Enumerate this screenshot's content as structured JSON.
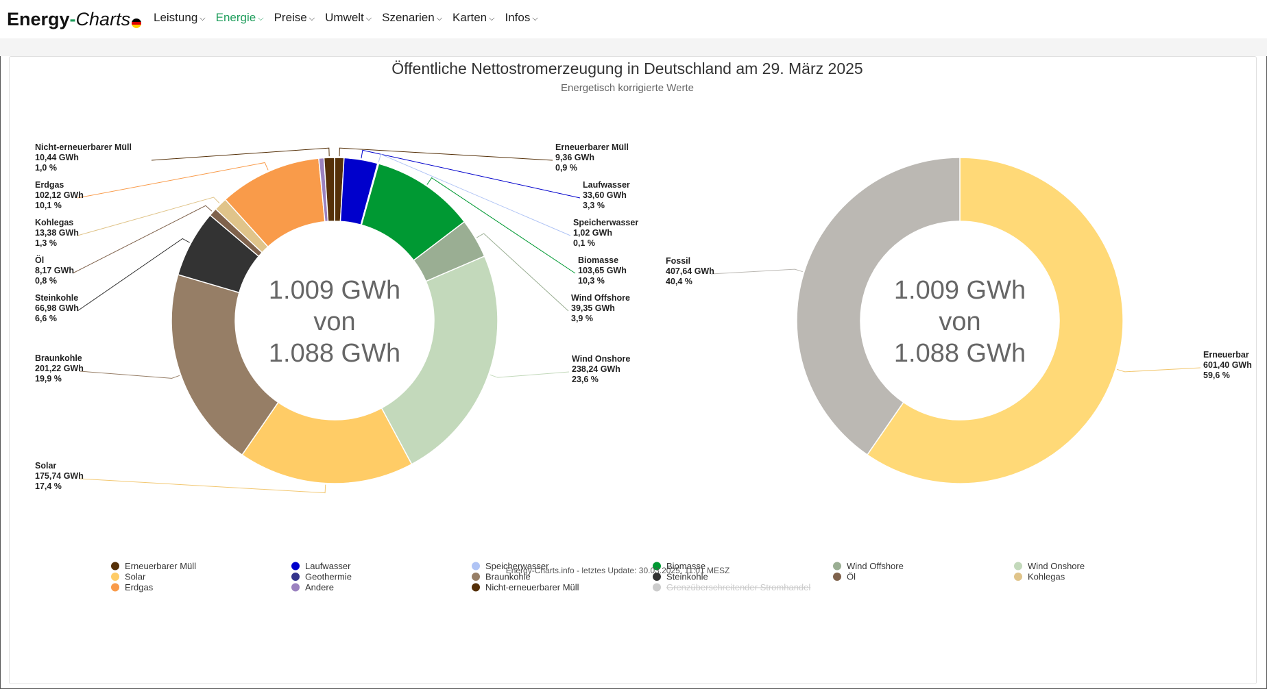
{
  "brand": {
    "part1": "Energy",
    "dash": "-",
    "part2": "Charts"
  },
  "nav": [
    {
      "label": "Leistung",
      "active": false
    },
    {
      "label": "Energie",
      "active": true
    },
    {
      "label": "Preise",
      "active": false
    },
    {
      "label": "Umwelt",
      "active": false
    },
    {
      "label": "Szenarien",
      "active": false
    },
    {
      "label": "Karten",
      "active": false
    },
    {
      "label": "Infos",
      "active": false
    }
  ],
  "chart": {
    "title": "Öffentliche Nettostromerzeugung in Deutschland am 29. März 2025",
    "subtitle": "Energetisch korrigierte Werte",
    "center_line1": "1.009 GWh",
    "center_line2": "von",
    "center_line3": "1.088 GWh",
    "credits": "Energy-Charts.info - letztes Update: 30.03.2025, 11:01 MESZ"
  },
  "chart_data": [
    {
      "type": "pie",
      "donut": true,
      "title": "Öffentliche Nettostromerzeugung in Deutschland am 29. März 2025",
      "subtitle": "Energetisch korrigierte Werte",
      "unit": "GWh",
      "slices": [
        {
          "name": "Erneuerbarer Müll",
          "value": 9.36,
          "value_label": "9,36 GWh",
          "percent_label": "0,9 %",
          "color": "#553008"
        },
        {
          "name": "Laufwasser",
          "value": 33.6,
          "value_label": "33,60 GWh",
          "percent_label": "3,3 %",
          "color": "#0000cc"
        },
        {
          "name": "Speicherwasser",
          "value": 1.02,
          "value_label": "1,02 GWh",
          "percent_label": "0,1 %",
          "color": "#b0c4f5"
        },
        {
          "name": "Biomasse",
          "value": 103.65,
          "value_label": "103,65 GWh",
          "percent_label": "10,3 %",
          "color": "#009933"
        },
        {
          "name": "Wind Offshore",
          "value": 39.35,
          "value_label": "39,35 GWh",
          "percent_label": "3,9 %",
          "color": "#9aae93"
        },
        {
          "name": "Wind Onshore",
          "value": 238.24,
          "value_label": "238,24 GWh",
          "percent_label": "23,6 %",
          "color": "#c3d9bb"
        },
        {
          "name": "Solar",
          "value": 175.74,
          "value_label": "175,74 GWh",
          "percent_label": "17,4 %",
          "color": "#ffcc66"
        },
        {
          "name": "Braunkohle",
          "value": 201.22,
          "value_label": "201,22 GWh",
          "percent_label": "19,9 %",
          "color": "#967e66"
        },
        {
          "name": "Steinkohle",
          "value": 66.98,
          "value_label": "66,98 GWh",
          "percent_label": "6,6 %",
          "color": "#333333"
        },
        {
          "name": "Öl",
          "value": 8.17,
          "value_label": "8,17 GWh",
          "percent_label": "0,8 %",
          "color": "#7f624c"
        },
        {
          "name": "Kohlegas",
          "value": 13.38,
          "value_label": "13,38 GWh",
          "percent_label": "1,3 %",
          "color": "#e0c48a"
        },
        {
          "name": "Erdgas",
          "value": 102.12,
          "value_label": "102,12 GWh",
          "percent_label": "10,1 %",
          "color": "#f99b4a"
        },
        {
          "name": "Andere",
          "value": 5.2,
          "value_label": "",
          "percent_label": "",
          "color": "#9b82c0"
        },
        {
          "name": "Nicht-erneuerbarer Müll",
          "value": 10.44,
          "value_label": "10,44 GWh",
          "percent_label": "1,0 %",
          "color": "#553008"
        }
      ]
    },
    {
      "type": "pie",
      "donut": true,
      "unit": "GWh",
      "slices": [
        {
          "name": "Erneuerbar",
          "value": 601.4,
          "value_label": "601,40 GWh",
          "percent_label": "59,6 %",
          "color": "#ffd977"
        },
        {
          "name": "Fossil",
          "value": 407.64,
          "value_label": "407,64 GWh",
          "percent_label": "40,4 %",
          "color": "#bbb8b3"
        }
      ]
    }
  ],
  "legend": [
    {
      "name": "Erneuerbarer Müll",
      "color": "#553008",
      "disabled": false
    },
    {
      "name": "Laufwasser",
      "color": "#0000cc",
      "disabled": false
    },
    {
      "name": "Speicherwasser",
      "color": "#b0c4f5",
      "disabled": false
    },
    {
      "name": "Biomasse",
      "color": "#009933",
      "disabled": false
    },
    {
      "name": "Wind Offshore",
      "color": "#9aae93",
      "disabled": false
    },
    {
      "name": "Wind Onshore",
      "color": "#c3d9bb",
      "disabled": false
    },
    {
      "name": "Solar",
      "color": "#ffcc66",
      "disabled": false
    },
    {
      "name": "Geothermie",
      "color": "#33338c",
      "disabled": false
    },
    {
      "name": "Braunkohle",
      "color": "#967e66",
      "disabled": false
    },
    {
      "name": "Steinkohle",
      "color": "#333333",
      "disabled": false
    },
    {
      "name": "Öl",
      "color": "#7f624c",
      "disabled": false
    },
    {
      "name": "Kohlegas",
      "color": "#e0c48a",
      "disabled": false
    },
    {
      "name": "Erdgas",
      "color": "#f99b4a",
      "disabled": false
    },
    {
      "name": "Andere",
      "color": "#9b82c0",
      "disabled": false
    },
    {
      "name": "Nicht-erneuerbarer Müll",
      "color": "#553008",
      "disabled": false
    },
    {
      "name": "Grenzüberschreitender Stromhandel",
      "color": "#cccccc",
      "disabled": true
    }
  ]
}
